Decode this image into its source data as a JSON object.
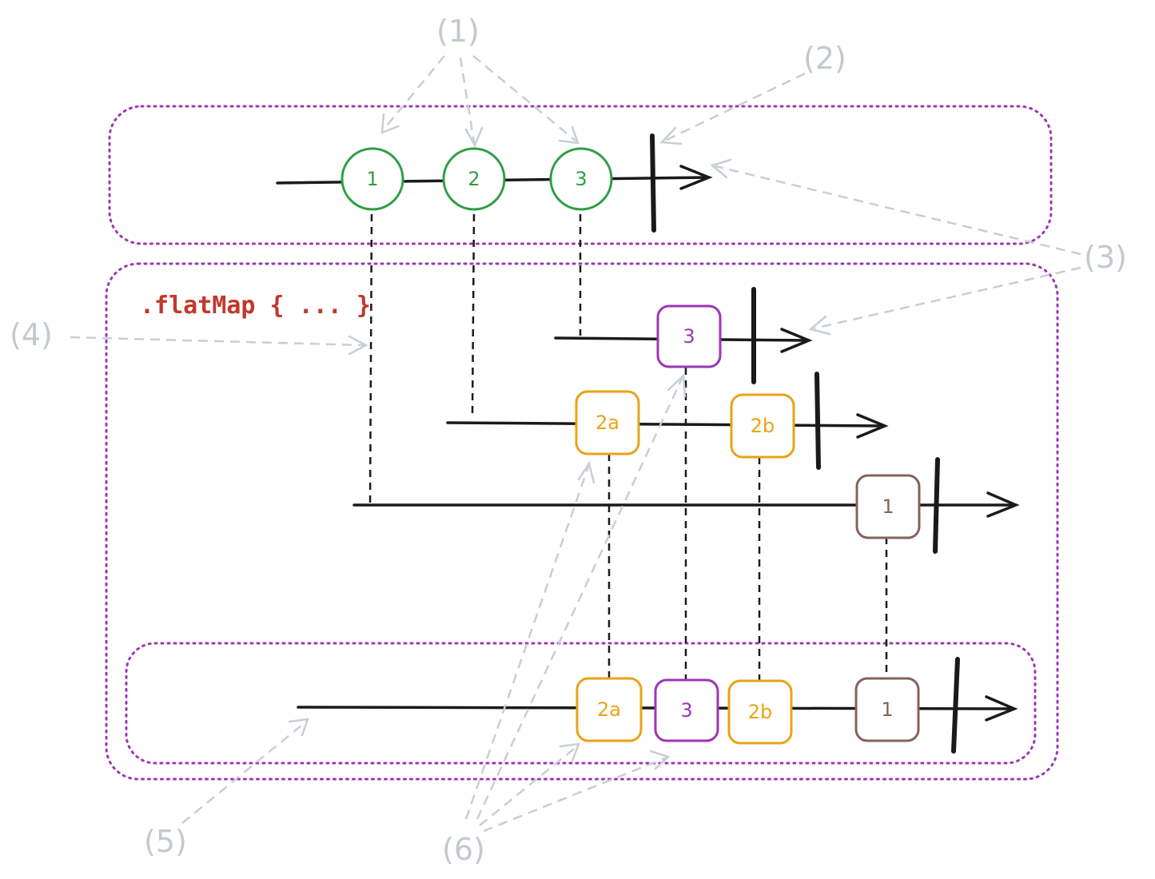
{
  "operator_label": ".flatMap { ... }",
  "callouts": {
    "c1": "(1)",
    "c2": "(2)",
    "c3": "(3)",
    "c4": "(4)",
    "c5": "(5)",
    "c6": "(6)"
  },
  "source_stream": {
    "events": [
      {
        "label": "1",
        "color": "#2f9e44"
      },
      {
        "label": "2",
        "color": "#2f9e44"
      },
      {
        "label": "3",
        "color": "#2f9e44"
      }
    ]
  },
  "inner_streams": {
    "stream_3": {
      "events": [
        {
          "label": "3",
          "color": "#9c36b5"
        }
      ]
    },
    "stream_2": {
      "events": [
        {
          "label": "2a",
          "color": "#e8a317"
        },
        {
          "label": "2b",
          "color": "#e8a317"
        }
      ]
    },
    "stream_1": {
      "events": [
        {
          "label": "1",
          "color": "#846358"
        }
      ]
    }
  },
  "result_stream": {
    "events": [
      {
        "label": "2a",
        "color": "#e8a317"
      },
      {
        "label": "3",
        "color": "#9c36b5"
      },
      {
        "label": "2b",
        "color": "#e8a317"
      },
      {
        "label": "1",
        "color": "#846358"
      }
    ]
  },
  "colors": {
    "region_border": "#9c36b5",
    "operator_text": "#c0392b",
    "callout": "#c4c9d0",
    "timeline": "#1a1a1a"
  }
}
